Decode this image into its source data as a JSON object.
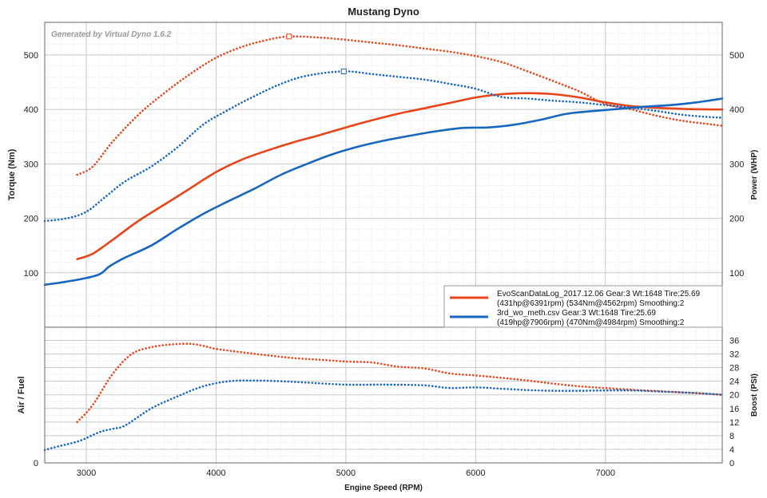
{
  "title": "Mustang Dyno",
  "watermark": "Generated by Virtual Dyno 1.6.2",
  "colors": {
    "series1": "#e84418",
    "series2": "#1766c0",
    "grid": "#c8c8c8",
    "minor_grid": "#e3e3e3",
    "frame": "#666666"
  },
  "legend": {
    "entries": [
      {
        "line1": "EvoScanDataLog_2017.12.06  Gear:3  Wt:1648  Tire:25.69",
        "line2": "(431hp@6391rpm)  (534Nm@4562rpm)  Smoothing:2",
        "color_key": "series1"
      },
      {
        "line1": "3rd_wo_meth.csv  Gear:3  Wt:1648  Tire:25.69",
        "line2": "(419hp@7906rpm)  (470Nm@4984rpm)  Smoothing:2",
        "color_key": "series2"
      }
    ]
  },
  "chart_data": [
    {
      "type": "line",
      "panel": "power-torque",
      "xlabel": "Engine Speed (RPM)",
      "ylabel": "Torque (Nm)",
      "y2label": "Power (WHP)",
      "xlim": [
        2680,
        7900
      ],
      "ylim": [
        0,
        560
      ],
      "y2lim": [
        0,
        560
      ],
      "xticks": [
        3000,
        4000,
        5000,
        6000,
        7000
      ],
      "yticks": [
        100,
        200,
        300,
        400,
        500
      ],
      "y2ticks": [
        100,
        200,
        300,
        400,
        500
      ],
      "grid": true,
      "legend_position": "bottom-right",
      "series": [
        {
          "key": "torque1",
          "axis": "y",
          "style": "solid",
          "color_key": "series1",
          "x": [
            2930,
            3050,
            3200,
            3400,
            3600,
            3800,
            4000,
            4200,
            4400,
            4600,
            4800,
            5000,
            5200,
            5400,
            5600,
            5800,
            6000,
            6200,
            6391,
            6600,
            6800,
            7000,
            7200,
            7400,
            7600,
            7800,
            7900
          ],
          "y": [
            125,
            135,
            160,
            195,
            225,
            255,
            285,
            308,
            325,
            340,
            353,
            367,
            380,
            392,
            402,
            412,
            422,
            428,
            430,
            428,
            422,
            413,
            406,
            403,
            401,
            400,
            400
          ]
        },
        {
          "key": "power1",
          "axis": "y2",
          "style": "dotted",
          "color_key": "series1",
          "marker": {
            "x": 4562,
            "y": 534
          },
          "x": [
            2930,
            3050,
            3200,
            3400,
            3600,
            3800,
            4000,
            4200,
            4400,
            4562,
            4800,
            5000,
            5200,
            5400,
            5600,
            5800,
            6000,
            6200,
            6400,
            6600,
            6800,
            7000,
            7200,
            7400,
            7600,
            7800,
            7900
          ],
          "y": [
            280,
            295,
            340,
            390,
            430,
            465,
            495,
            515,
            528,
            534,
            532,
            528,
            523,
            518,
            512,
            506,
            498,
            487,
            470,
            452,
            433,
            410,
            400,
            388,
            379,
            373,
            370
          ]
        },
        {
          "key": "torque2",
          "axis": "y",
          "style": "solid",
          "color_key": "series2",
          "x": [
            2680,
            2800,
            2950,
            3100,
            3180,
            3300,
            3500,
            3700,
            3900,
            4100,
            4300,
            4500,
            4700,
            4900,
            5100,
            5300,
            5500,
            5700,
            5900,
            6100,
            6300,
            6500,
            6700,
            6900,
            7100,
            7300,
            7500,
            7700,
            7900
          ],
          "y": [
            78,
            82,
            88,
            97,
            112,
            128,
            150,
            180,
            208,
            232,
            255,
            280,
            300,
            318,
            332,
            343,
            352,
            360,
            366,
            367,
            372,
            381,
            392,
            397,
            401,
            405,
            408,
            413,
            420
          ]
        },
        {
          "key": "power2",
          "axis": "y2",
          "style": "dotted",
          "color_key": "series2",
          "marker": {
            "x": 4984,
            "y": 470
          },
          "x": [
            2680,
            2850,
            3000,
            3150,
            3300,
            3500,
            3700,
            3900,
            4100,
            4300,
            4500,
            4700,
            4984,
            5200,
            5400,
            5600,
            5800,
            6000,
            6200,
            6400,
            6600,
            6800,
            7000,
            7200,
            7400,
            7600,
            7800,
            7900
          ],
          "y": [
            195,
            200,
            212,
            240,
            268,
            295,
            330,
            372,
            400,
            425,
            447,
            462,
            470,
            465,
            460,
            455,
            447,
            438,
            423,
            420,
            416,
            413,
            408,
            403,
            397,
            390,
            386,
            385
          ]
        }
      ]
    },
    {
      "type": "line",
      "panel": "airfuel-boost",
      "ylabel": "Air / Fuel",
      "y2label": "Boost (PSI)",
      "xlim": [
        2680,
        7900
      ],
      "y2lim": [
        0,
        38
      ],
      "yticks": [
        0
      ],
      "y2ticks": [
        0,
        4,
        8,
        12,
        16,
        20,
        24,
        28,
        32,
        36
      ],
      "grid": true,
      "series": [
        {
          "key": "boost1",
          "axis": "y2",
          "style": "dotted",
          "color_key": "series1",
          "x": [
            2930,
            3050,
            3200,
            3350,
            3500,
            3650,
            3800,
            3900,
            4000,
            4200,
            4400,
            4600,
            4800,
            5000,
            5200,
            5400,
            5600,
            5800,
            6000,
            6200,
            6400,
            6600,
            6800,
            7000,
            7200,
            7400,
            7600,
            7800,
            7900
          ],
          "y": [
            12,
            17,
            26,
            32,
            34,
            34.8,
            35,
            34.4,
            33.5,
            32.5,
            31.6,
            30.8,
            30.3,
            29.8,
            29.5,
            28.3,
            27.8,
            26.3,
            25.7,
            25,
            24.2,
            23.3,
            22.5,
            22,
            21.5,
            21.1,
            20.7,
            20.3,
            20
          ]
        },
        {
          "key": "boost2",
          "axis": "y2",
          "style": "dotted",
          "color_key": "series2",
          "x": [
            2680,
            2800,
            2950,
            3100,
            3200,
            3300,
            3500,
            3700,
            3900,
            4100,
            4300,
            4500,
            4700,
            5000,
            5300,
            5600,
            5800,
            6000,
            6200,
            6400,
            6600,
            6800,
            7000,
            7200,
            7400,
            7600,
            7800,
            7900
          ],
          "y": [
            3.8,
            5,
            6.5,
            9,
            10,
            11,
            16,
            19.5,
            22.5,
            24,
            24.2,
            24,
            23.6,
            23,
            23,
            22.8,
            22,
            22.2,
            21.8,
            21.4,
            21.2,
            21.2,
            21.3,
            21.3,
            21,
            20.7,
            20.3,
            20
          ]
        }
      ]
    }
  ]
}
